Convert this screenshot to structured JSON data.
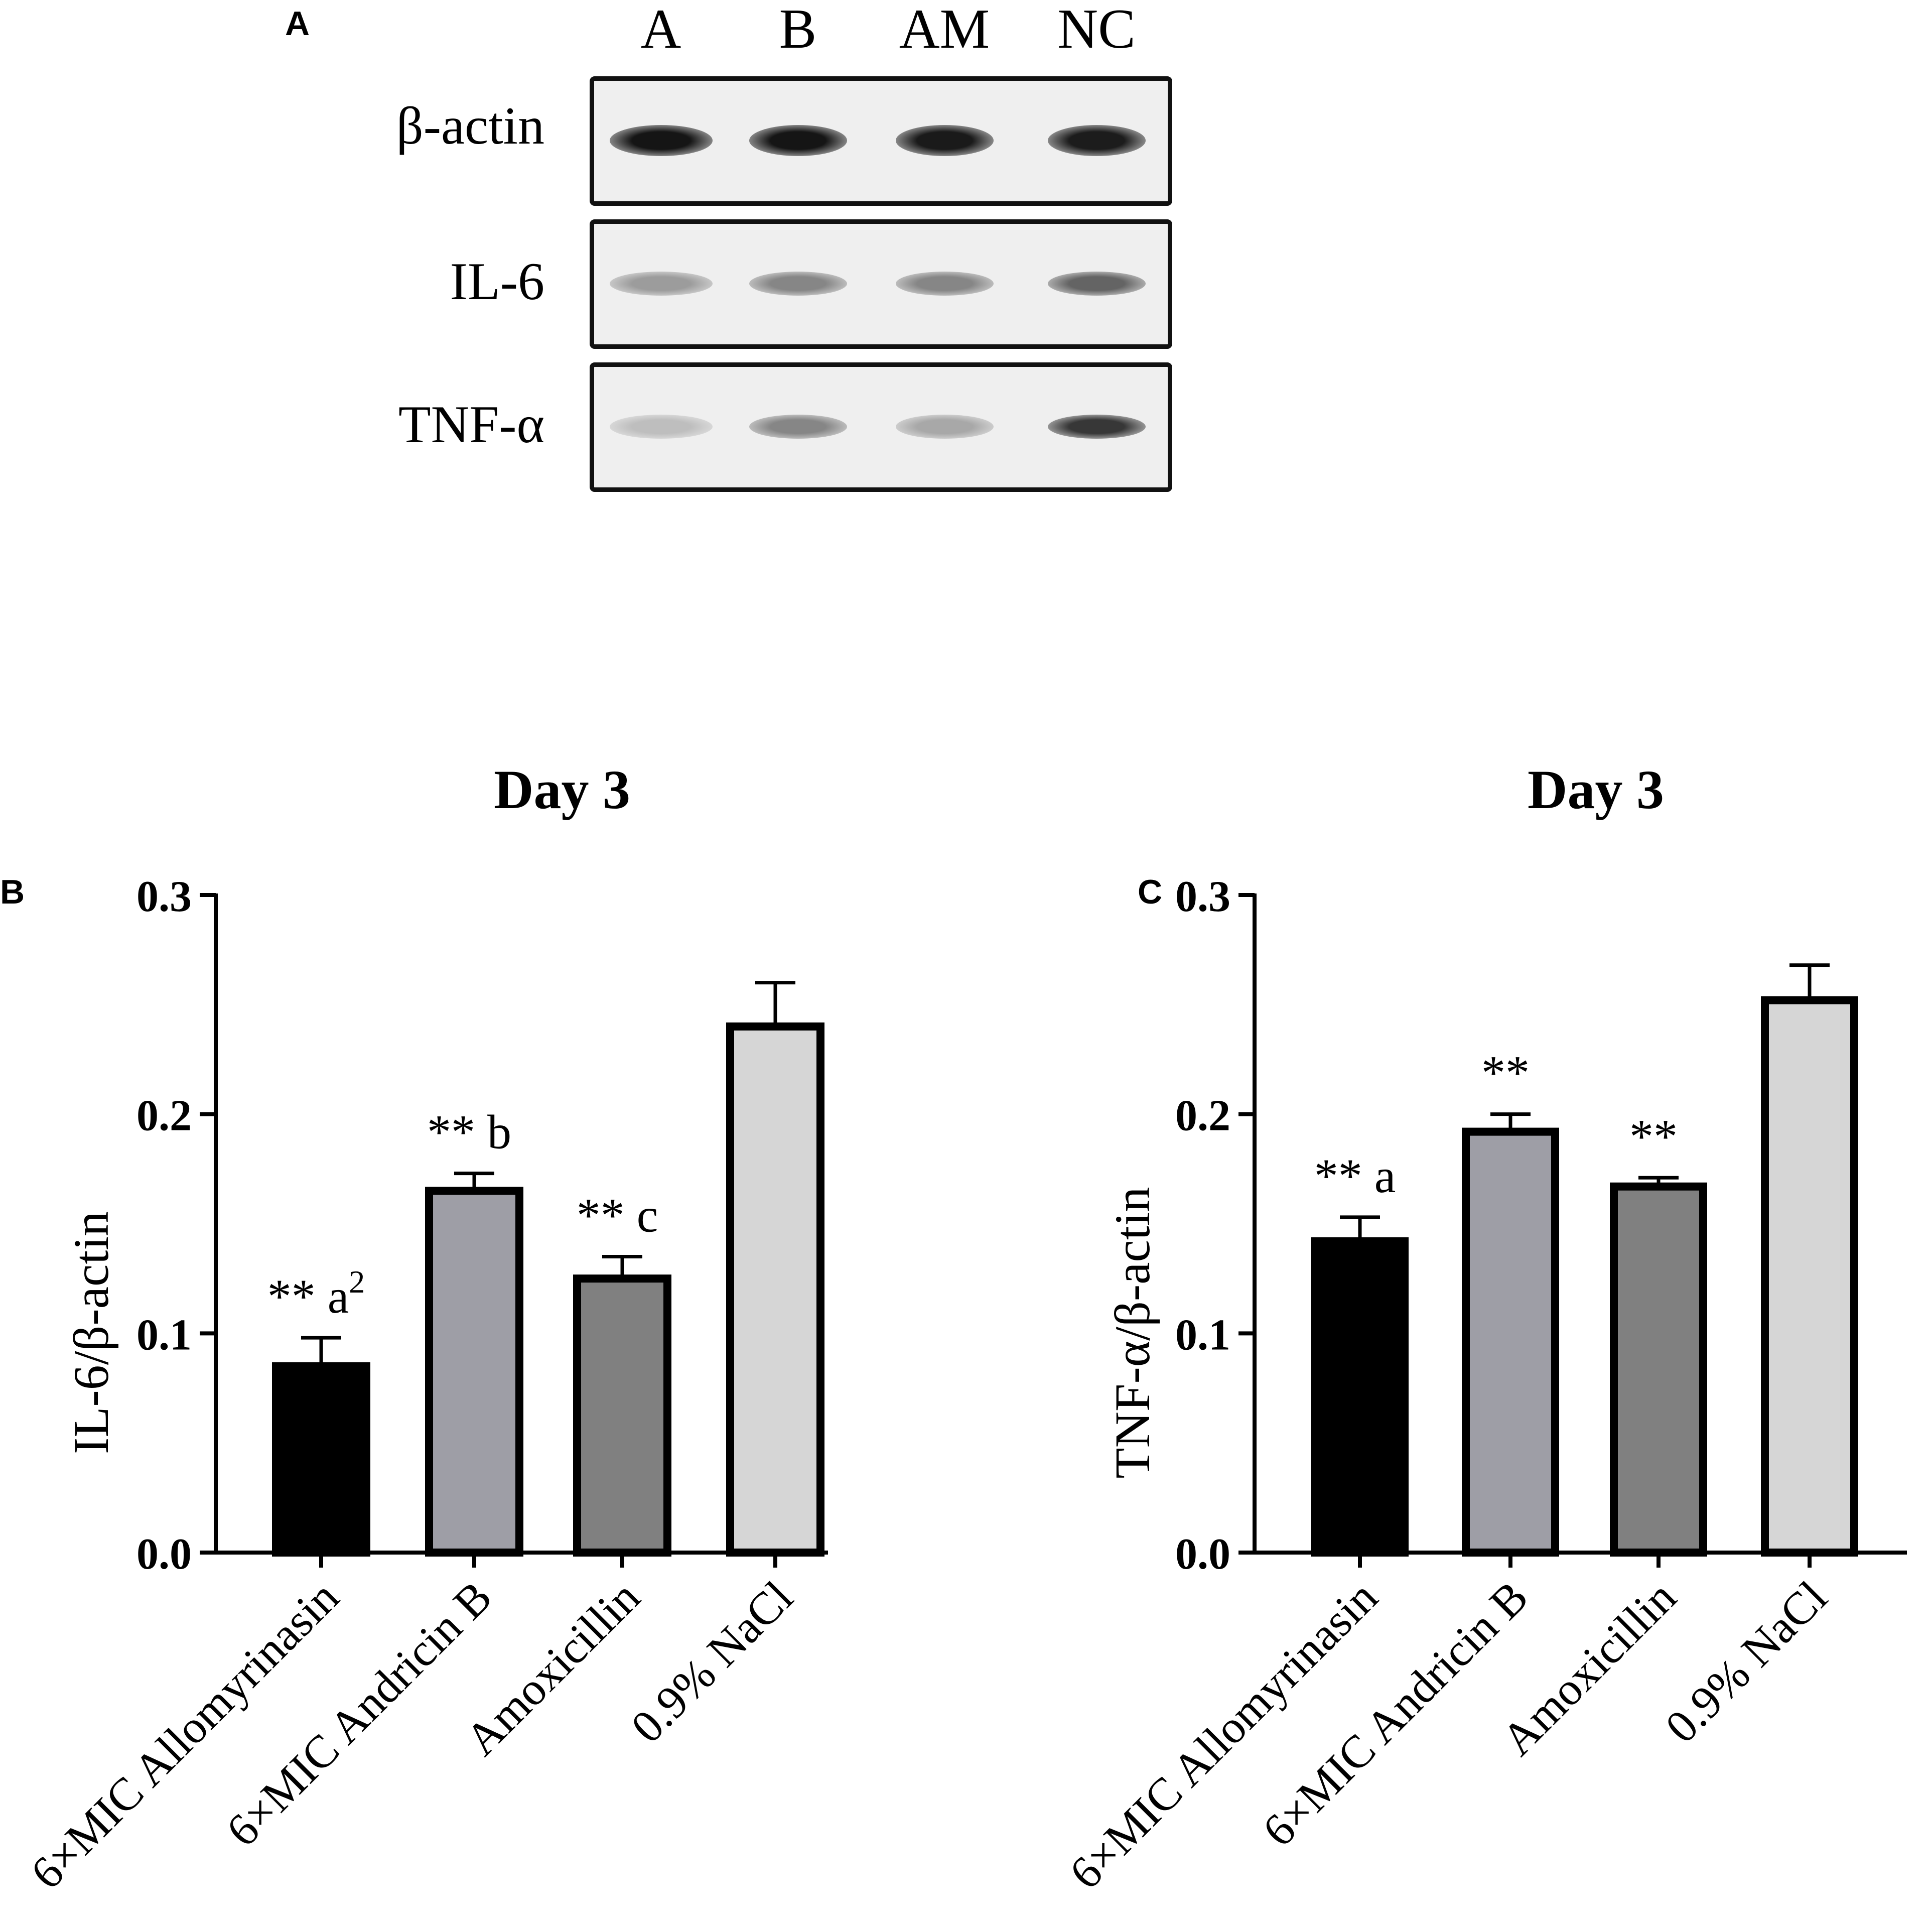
{
  "panel_a": {
    "letter": "A",
    "lanes": [
      "A",
      "B",
      "AM",
      "NC"
    ],
    "rows": [
      {
        "label": "β-actin",
        "band_intensity": [
          0.95,
          0.95,
          0.93,
          0.92
        ]
      },
      {
        "label": "IL-6",
        "band_intensity": [
          0.35,
          0.45,
          0.45,
          0.6
        ]
      },
      {
        "label": "TNF-α",
        "band_intensity": [
          0.2,
          0.45,
          0.3,
          0.8
        ]
      }
    ]
  },
  "chart_data": [
    {
      "panel": "B",
      "type": "bar",
      "title": "Day 3",
      "xlabel": "",
      "ylabel": "IL-6/β-actin",
      "ylim": [
        0,
        0.3
      ],
      "yticks": [
        "0.0",
        "0.1",
        "0.2",
        "0.3"
      ],
      "categories": [
        "6×MIC Allomyrinasin",
        "6×MIC Andricin B",
        "Amoxicillin",
        "0.9% NaCl"
      ],
      "values": [
        0.085,
        0.165,
        0.125,
        0.24
      ],
      "errors": [
        0.013,
        0.008,
        0.01,
        0.02
      ],
      "annotations": [
        "** a",
        "** b",
        "** c",
        ""
      ],
      "annotation_superscripts": [
        "2",
        "",
        "",
        ""
      ],
      "colors": [
        "#000000",
        "#9e9ea6",
        "#808080",
        "#d6d6d6"
      ]
    },
    {
      "panel": "C",
      "type": "bar",
      "title": "Day 3",
      "xlabel": "",
      "ylabel": "TNF-α/β-actin",
      "ylim": [
        0,
        0.3
      ],
      "yticks": [
        "0.0",
        "0.1",
        "0.2",
        "0.3"
      ],
      "categories": [
        "6×MIC Allomyrinasin",
        "6×MIC Andricin B",
        "Amoxicillin",
        "0.9% NaCl"
      ],
      "values": [
        0.142,
        0.192,
        0.167,
        0.252
      ],
      "errors": [
        0.011,
        0.008,
        0.004,
        0.016
      ],
      "annotations": [
        "** a",
        "**",
        "**",
        ""
      ],
      "annotation_superscripts": [
        "",
        "",
        "",
        ""
      ],
      "colors": [
        "#000000",
        "#9e9ea6",
        "#808080",
        "#d6d6d6"
      ]
    }
  ]
}
